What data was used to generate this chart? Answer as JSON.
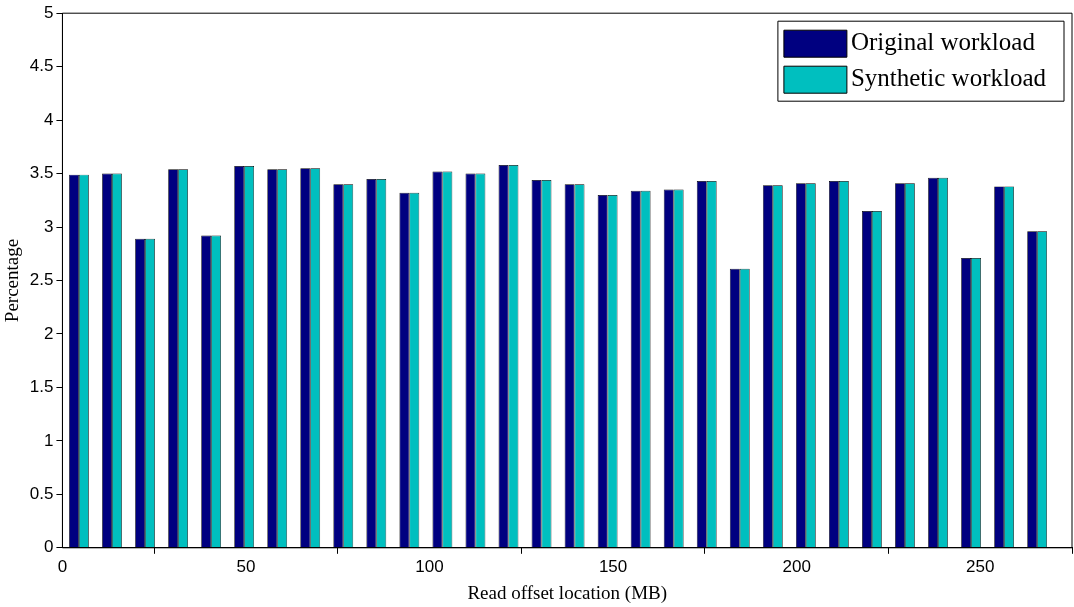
{
  "chart_data": {
    "type": "bar",
    "xlabel": "Read offset location (MB)",
    "ylabel": "Percentage",
    "x": [
      4.5,
      13.5,
      22.5,
      31.5,
      40.5,
      49.5,
      58.5,
      67.5,
      76.5,
      85.5,
      94.5,
      103.5,
      112.5,
      121.5,
      130.5,
      139.5,
      148.5,
      157.5,
      166.5,
      175.5,
      184.5,
      193.5,
      202.5,
      211.5,
      220.5,
      229.5,
      238.5,
      247.5,
      256.5,
      265.5
    ],
    "series": [
      {
        "name": "Original workload",
        "color": "#000080",
        "values": [
          3.49,
          3.5,
          2.89,
          3.54,
          2.92,
          3.57,
          3.54,
          3.55,
          3.4,
          3.45,
          3.32,
          3.52,
          3.5,
          3.58,
          3.44,
          3.4,
          3.3,
          3.34,
          3.35,
          3.43,
          2.61,
          3.39,
          3.41,
          3.43,
          3.15,
          3.41,
          3.46,
          2.71,
          3.38,
          2.96
        ]
      },
      {
        "name": "Synthetic workload",
        "color": "#00bfbf",
        "values": [
          3.49,
          3.5,
          2.89,
          3.54,
          2.92,
          3.57,
          3.54,
          3.55,
          3.4,
          3.45,
          3.32,
          3.52,
          3.5,
          3.58,
          3.44,
          3.4,
          3.3,
          3.34,
          3.35,
          3.43,
          2.61,
          3.39,
          3.41,
          3.43,
          3.15,
          3.41,
          3.46,
          2.71,
          3.38,
          2.96
        ]
      }
    ],
    "xlim": [
      0,
      275
    ],
    "xticks": [
      0,
      50,
      100,
      150,
      200,
      250
    ],
    "ylim": [
      0,
      5
    ],
    "yticks": [
      0,
      0.5,
      1,
      1.5,
      2,
      2.5,
      3,
      3.5,
      4,
      4.5,
      5
    ],
    "grid": false,
    "legend": "top right"
  }
}
